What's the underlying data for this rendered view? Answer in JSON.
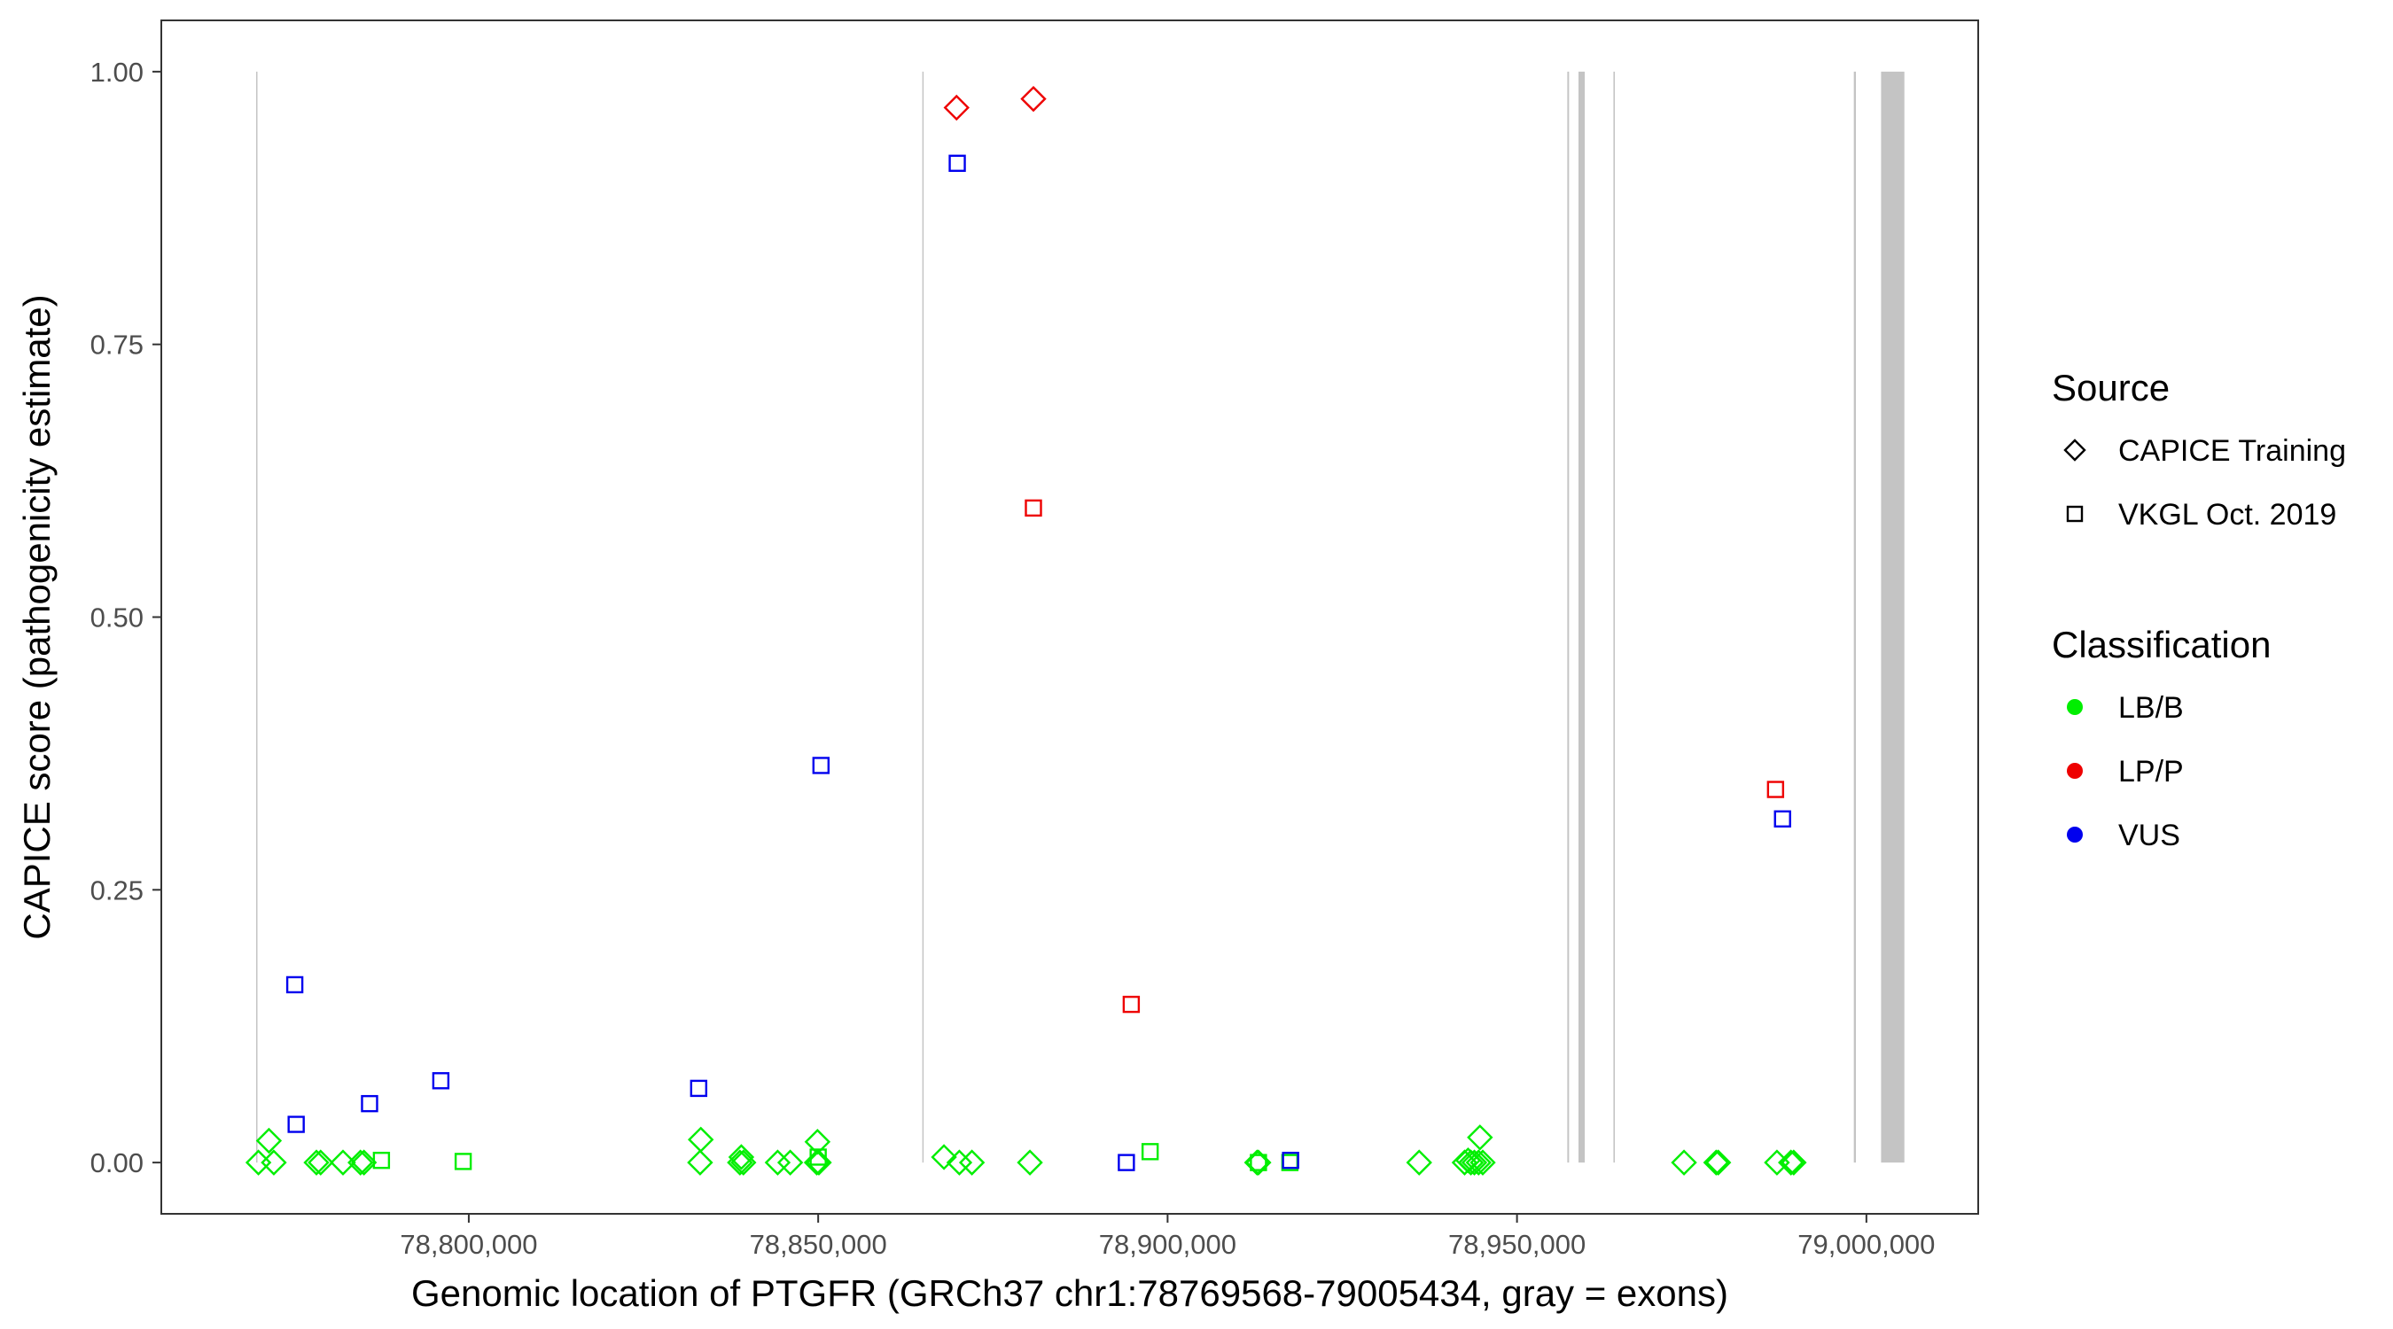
{
  "chart_data": {
    "type": "scatter",
    "title": "",
    "xlabel": "Genomic location of PTGFR (GRCh37 chr1:78769568-79005434, gray = exons)",
    "ylabel": "CAPICE score (pathogenicity estimate)",
    "xlim": [
      78756000,
      79016000
    ],
    "ylim": [
      -0.047,
      1.047
    ],
    "x_ticks": [
      78800000,
      78850000,
      78900000,
      78950000,
      79000000
    ],
    "x_tick_labels": [
      "78,800,000",
      "78,850,000",
      "78,900,000",
      "78,950,000",
      "79,000,000"
    ],
    "y_ticks": [
      0,
      0.25,
      0.5,
      0.75,
      1
    ],
    "y_tick_labels": [
      "0.00",
      "0.25",
      "0.50",
      "0.75",
      "1.00"
    ],
    "grid": false,
    "exons": [
      {
        "start": 78769568,
        "end": 78769620
      },
      {
        "start": 78864900,
        "end": 78864960
      },
      {
        "start": 78957200,
        "end": 78957450
      },
      {
        "start": 78958800,
        "end": 78959700
      },
      {
        "start": 78963800,
        "end": 78964000
      },
      {
        "start": 78998200,
        "end": 78998500
      },
      {
        "start": 79002100,
        "end": 79005434
      }
    ],
    "legend": {
      "placement": "right",
      "source": {
        "title": "Source",
        "items": [
          {
            "label": "CAPICE Training",
            "shape": "diamond"
          },
          {
            "label": "VKGL Oct. 2019",
            "shape": "square"
          }
        ]
      },
      "classification": {
        "title": "Classification",
        "items": [
          {
            "label": "LB/B",
            "color": "#00ee00"
          },
          {
            "label": "LP/P",
            "color": "#ee0000"
          },
          {
            "label": "VUS",
            "color": "#0000ee"
          }
        ]
      }
    },
    "series": [
      {
        "classification": "LB/B",
        "source": "CAPICE Training",
        "color": "#00ee00",
        "shape": "diamond",
        "x": [
          78769900,
          78771400,
          78772100,
          78778200,
          78778800,
          78782000,
          78784500,
          78785000,
          78833100,
          78833200,
          78838800,
          78839000,
          78839300,
          78844200,
          78846000,
          78849800,
          78849900,
          78850100,
          78868000,
          78870200,
          78872000,
          78880300,
          78912800,
          78913000,
          78936000,
          78942500,
          78943000,
          78943400,
          78943900,
          78944500,
          78944700,
          78945100,
          78973900,
          78978500,
          78978800,
          78987200,
          78989200,
          78989600
        ],
        "y": [
          0.0,
          0.02,
          0.0,
          0.0,
          0.0,
          0.0,
          0.0,
          0.0,
          0.0,
          0.021,
          0.0,
          0.005,
          0.0,
          0.0,
          0.0,
          0.0,
          0.019,
          0.0,
          0.005,
          0.0,
          0.0,
          0.0,
          0.0,
          0.0,
          0.0,
          0.0,
          0.002,
          0.0,
          0.0,
          0.0,
          0.023,
          0.0,
          0.0,
          0.0,
          0.0,
          0.0,
          0.0,
          0.0
        ]
      },
      {
        "classification": "LB/B",
        "source": "VKGL Oct. 2019",
        "color": "#00ee00",
        "shape": "square",
        "x": [
          78787500,
          78799200,
          78850000,
          78897500,
          78913000,
          78917500
        ],
        "y": [
          0.002,
          0.001,
          0.005,
          0.01,
          0.0,
          0.0
        ]
      },
      {
        "classification": "LP/P",
        "source": "CAPICE Training",
        "color": "#ee0000",
        "shape": "diamond",
        "x": [
          78869800,
          78880800
        ],
        "y": [
          0.967,
          0.975
        ]
      },
      {
        "classification": "LP/P",
        "source": "VKGL Oct. 2019",
        "color": "#ee0000",
        "shape": "square",
        "x": [
          78880800,
          78894800,
          78987000
        ],
        "y": [
          0.6,
          0.145,
          0.342
        ]
      },
      {
        "classification": "VUS",
        "source": "VKGL Oct. 2019",
        "color": "#0000ee",
        "shape": "square",
        "x": [
          78775100,
          78775300,
          78785800,
          78796000,
          78832900,
          78850400,
          78869900,
          78894100,
          78917600,
          78988000
        ],
        "y": [
          0.163,
          0.035,
          0.054,
          0.075,
          0.068,
          0.364,
          0.916,
          0.0,
          0.002,
          0.315
        ]
      }
    ]
  }
}
